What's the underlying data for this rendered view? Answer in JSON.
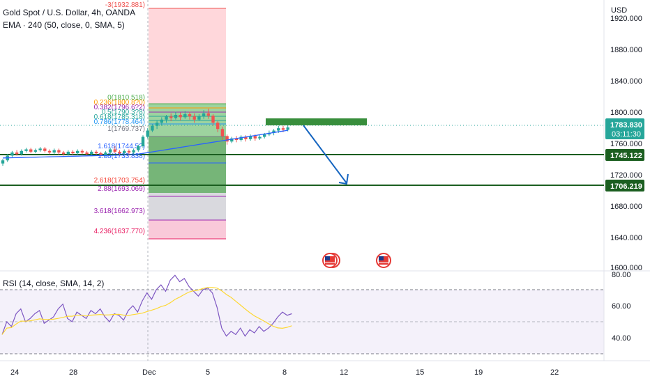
{
  "header": {
    "title": "Gold Spot / U.S. Dollar, 4h, OANDA",
    "indicator": "EMA · 240 (50, close, 0, SMA, 5)"
  },
  "currency": "USD",
  "price_axis": {
    "labels": [
      "1920.000",
      "1880.000",
      "1840.000",
      "1800.000",
      "1760.000",
      "1720.000",
      "1680.000",
      "1640.000",
      "1600.000"
    ]
  },
  "price_tags": {
    "last": {
      "value": "1783.830",
      "countdown": "03:11:30",
      "color": "#26a69a"
    },
    "line1": {
      "value": "1745.122",
      "color": "#1b5e20"
    },
    "line2": {
      "value": "1706.219",
      "color": "#1b5e20"
    }
  },
  "fib_labels": [
    {
      "text": "-3(1932.881)",
      "color": "#ef5350"
    },
    {
      "text": "0(1810.518)",
      "color": "#4caf50"
    },
    {
      "text": "0.236(1800.8?0)",
      "color": "#ff9800"
    },
    {
      "text": "0.382(1796.6?2)",
      "color": "#9c27b0"
    },
    {
      "text": "0.5(1790.3?8)",
      "color": "#26a69a"
    },
    {
      "text": "0.618(1785.318)",
      "color": "#26a69a"
    },
    {
      "text": "0.786(1778.464)",
      "color": "#2196f3"
    },
    {
      "text": "1(1769.737)",
      "color": "#787b86"
    },
    {
      "text": "1.618(1744.5?)",
      "color": "#2962ff"
    },
    {
      "text": "1.88(1733.838)",
      "color": "#2962ff"
    },
    {
      "text": "2.618(1703.754)",
      "color": "#f44336"
    },
    {
      "text": "2.88(1693.069)",
      "color": "#9c27b0"
    },
    {
      "text": "3.618(1662.973)",
      "color": "#9c27b0"
    },
    {
      "text": "4.236(1637.770)",
      "color": "#e91e63"
    }
  ],
  "rsi": {
    "label": "RSI (14, close, SMA, 14, 2)",
    "axis_labels": [
      "80.00",
      "60.00",
      "40.00"
    ]
  },
  "time_axis": {
    "labels": [
      "24",
      "28",
      "Dec",
      "5",
      "8",
      "12",
      "15",
      "19",
      "22"
    ]
  },
  "colors": {
    "bull": "#26a69a",
    "bear": "#ef5350",
    "ema": "#2962ff",
    "rsi_line": "#7e57c2",
    "rsi_ma": "#fdd835",
    "support": "#1b5e20",
    "arrow": "#1565c0"
  }
}
